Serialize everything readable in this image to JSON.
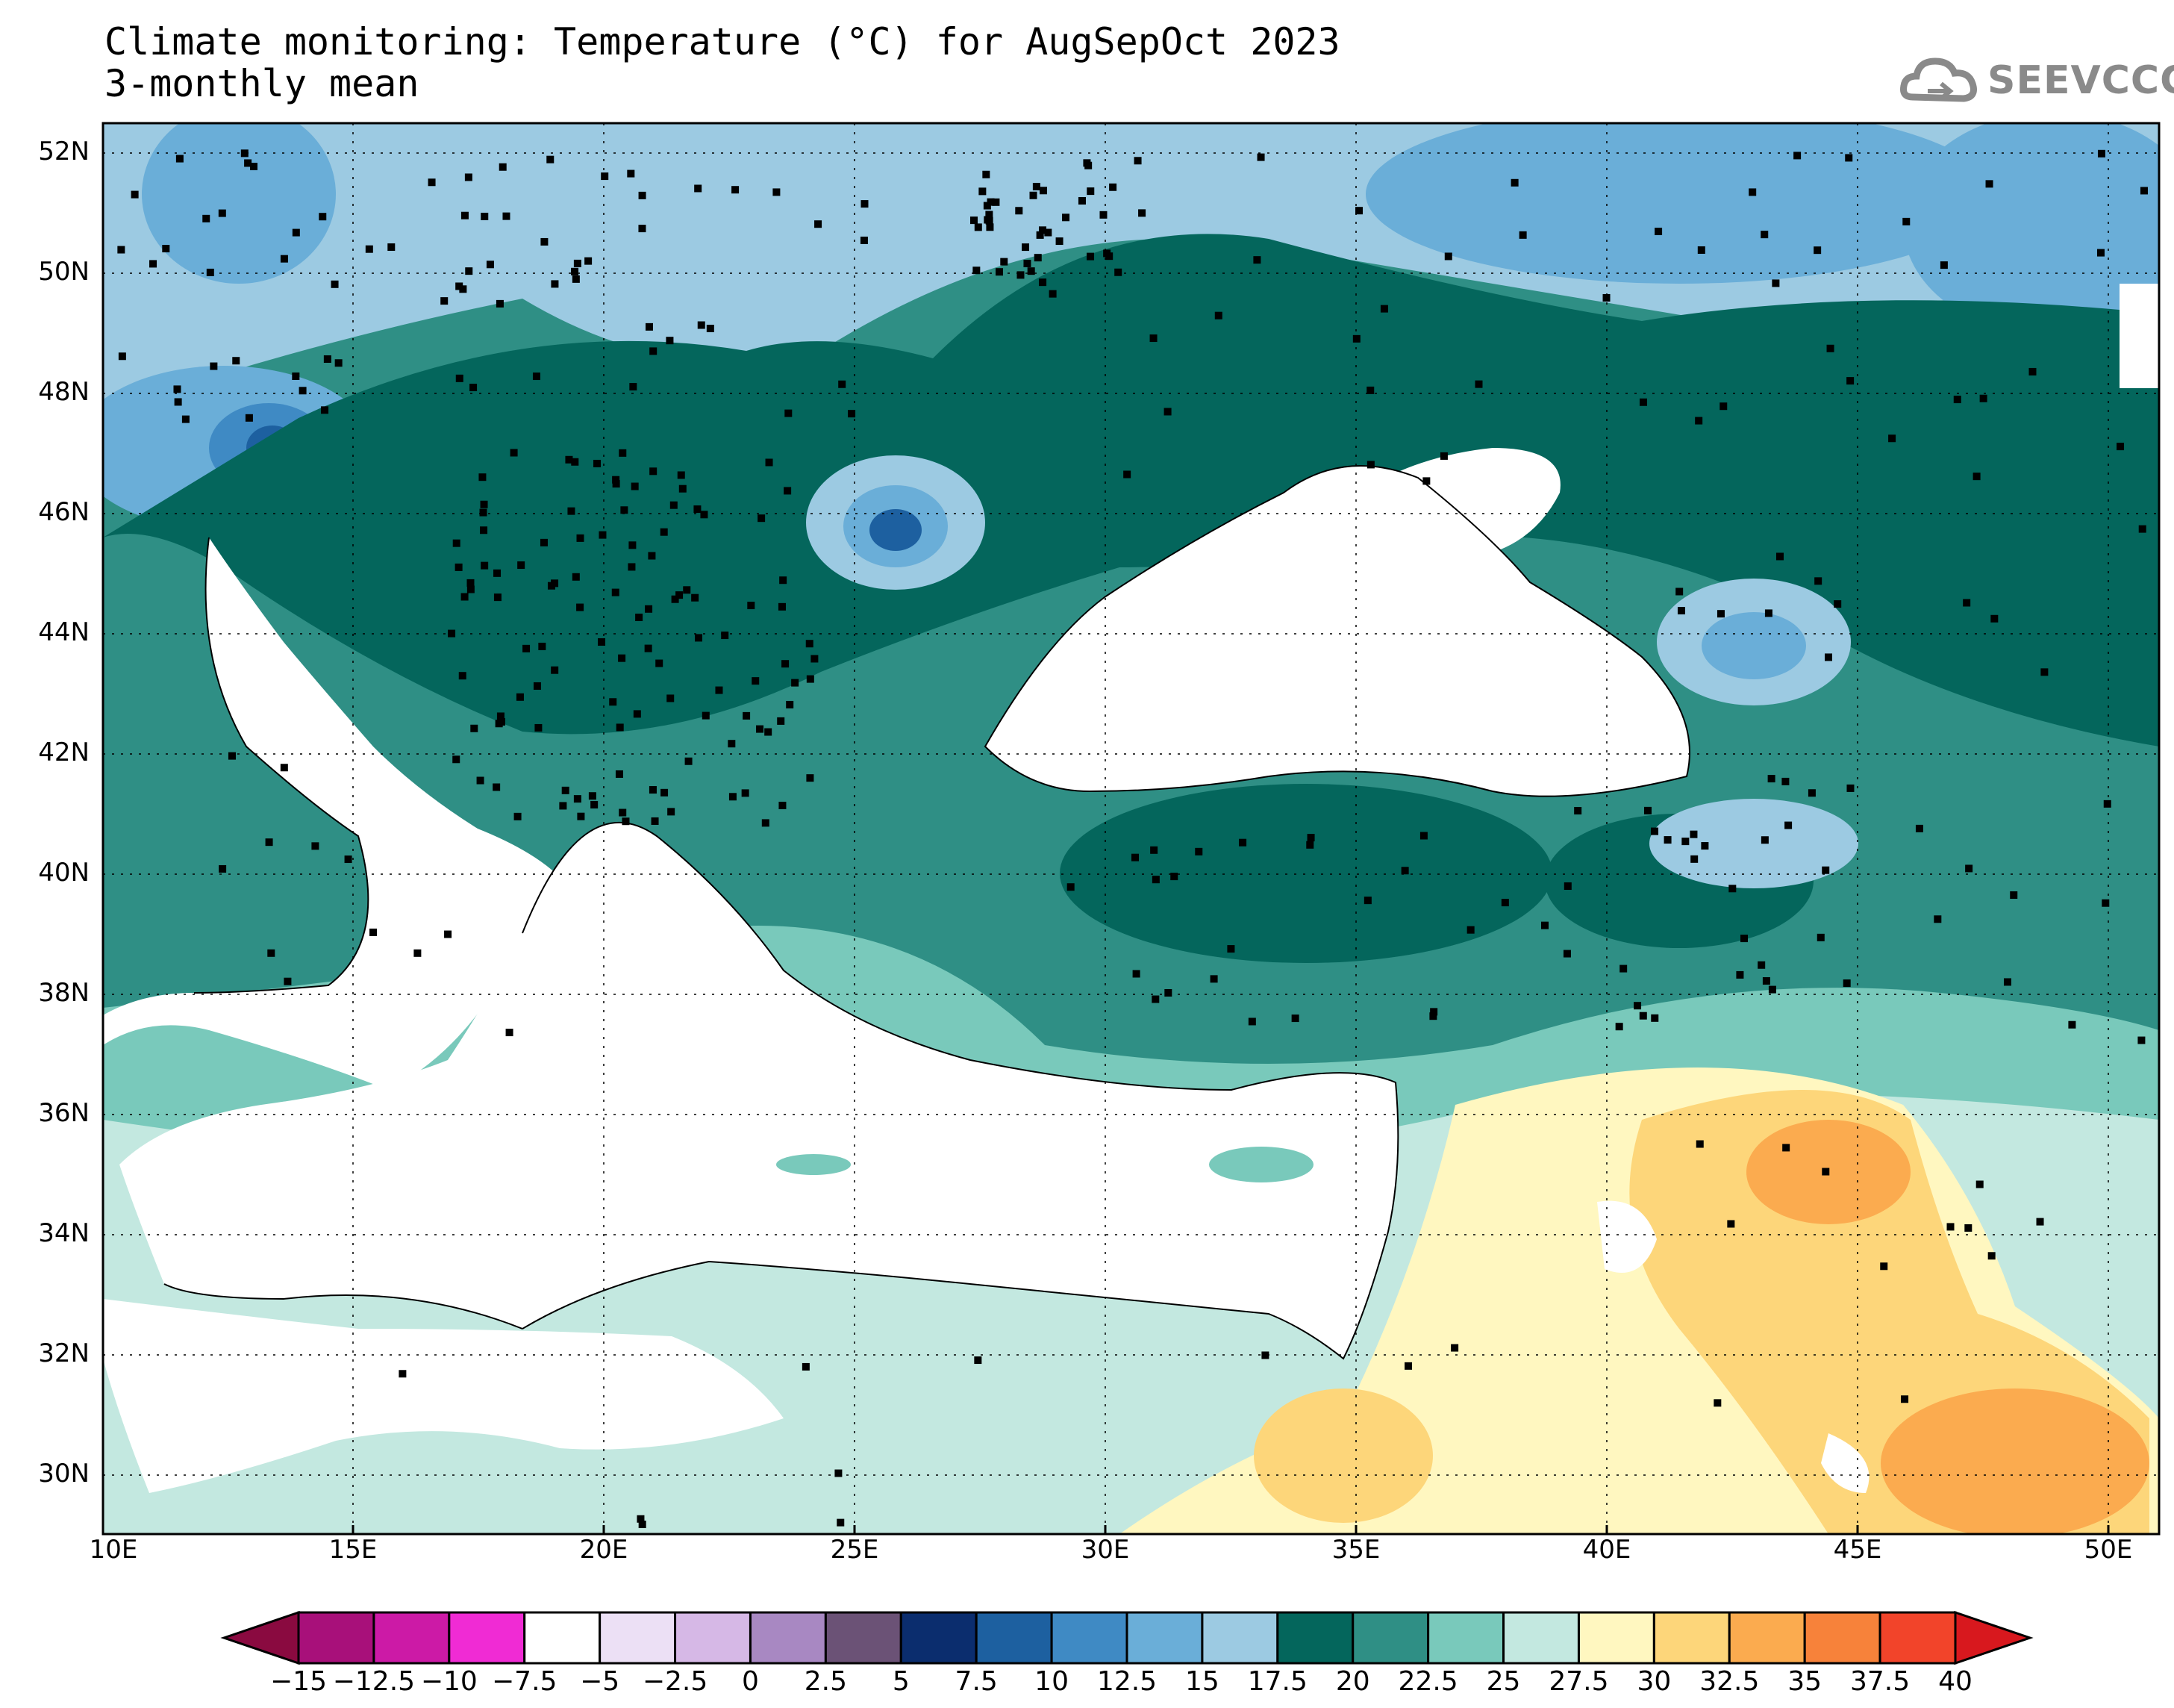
{
  "title": {
    "line1": "Climate monitoring: Temperature (°C) for AugSepOct 2023",
    "line2": "3-monthly mean"
  },
  "logo": {
    "text": "SEEVCCC",
    "icon": "cloud-icon"
  },
  "map": {
    "projection": "lat-lon",
    "lon_range": [
      10,
      51
    ],
    "lat_range": [
      29,
      52.5
    ],
    "gridlines": "dotted",
    "background_ocean": "#ffffff",
    "lat_ticks": [
      "52N",
      "50N",
      "48N",
      "46N",
      "44N",
      "42N",
      "40N",
      "38N",
      "36N",
      "34N",
      "32N",
      "30N"
    ],
    "lon_ticks": [
      "10E",
      "15E",
      "20E",
      "25E",
      "30E",
      "35E",
      "40E",
      "45E",
      "50E"
    ]
  },
  "colorbar": {
    "labels": [
      "−15",
      "−12.5",
      "−10",
      "−7.5",
      "−5",
      "−2.5",
      "0",
      "2.5",
      "5",
      "7.5",
      "10",
      "12.5",
      "15",
      "17.5",
      "20",
      "22.5",
      "25",
      "27.5",
      "30",
      "32.5",
      "35",
      "37.5",
      "40"
    ],
    "colors": [
      "#8a0a40",
      "#a8107a",
      "#cc1aa6",
      "#f02bd4",
      "#ffffff",
      "#ece0f5",
      "#d6b8e6",
      "#a888c2",
      "#6b5276",
      "#0b2d6e",
      "#1d60a0",
      "#3f8ac4",
      "#6aaed8",
      "#9ccae2",
      "#04665c",
      "#2f8f85",
      "#79c9bb",
      "#c3e8e0",
      "#fff7c0",
      "#fdd67a",
      "#fbab4f",
      "#f7823a",
      "#f2442a",
      "#d8181e"
    ]
  }
}
